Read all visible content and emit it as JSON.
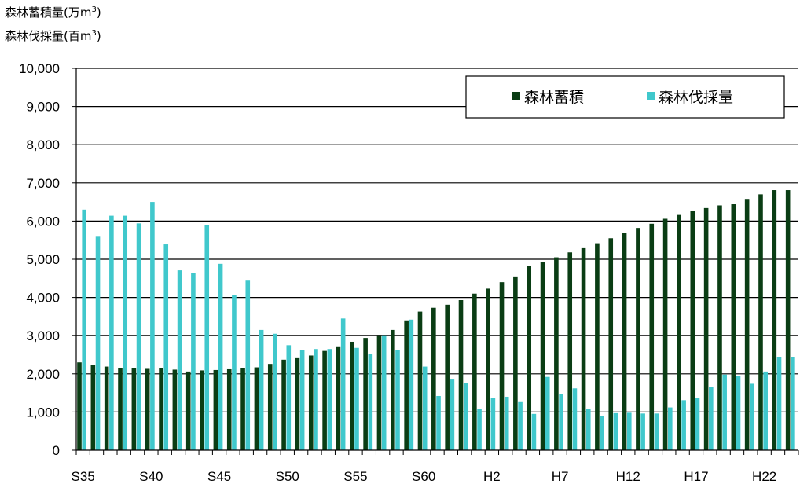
{
  "chart_data": {
    "type": "bar",
    "ylabel_lines": [
      {
        "text": "森林蓄積量(万m",
        "sup": "3",
        "close": ")"
      },
      {
        "text": "森林伐採量(百m",
        "sup": "3",
        "close": ")"
      }
    ],
    "ylim": [
      0,
      10000
    ],
    "yticks": [
      0,
      1000,
      2000,
      3000,
      4000,
      5000,
      6000,
      7000,
      8000,
      9000,
      10000
    ],
    "ytick_labels": [
      "0",
      "1,000",
      "2,000",
      "3,000",
      "4,000",
      "5,000",
      "6,000",
      "7,000",
      "8,000",
      "9,000",
      "10,000"
    ],
    "grid": true,
    "legend_position": "top-right",
    "categories": [
      "S35",
      "S36",
      "S37",
      "S38",
      "S39",
      "S40",
      "S41",
      "S42",
      "S43",
      "S44",
      "S45",
      "S46",
      "S47",
      "S48",
      "S49",
      "S50",
      "S51",
      "S52",
      "S53",
      "S54",
      "S55",
      "S56",
      "S57",
      "S58",
      "S59",
      "S60",
      "S61",
      "S62",
      "S63",
      "H1",
      "H2",
      "H3",
      "H4",
      "H5",
      "H6",
      "H7",
      "H8",
      "H9",
      "H10",
      "H11",
      "H12",
      "H13",
      "H14",
      "H15",
      "H16",
      "H17",
      "H18",
      "H19",
      "H20",
      "H21",
      "H22",
      "H23",
      "H24"
    ],
    "xtick_labels": [
      {
        "index": 0,
        "label": "S35"
      },
      {
        "index": 5,
        "label": "S40"
      },
      {
        "index": 10,
        "label": "S45"
      },
      {
        "index": 15,
        "label": "S50"
      },
      {
        "index": 20,
        "label": "S55"
      },
      {
        "index": 25,
        "label": "S60"
      },
      {
        "index": 30,
        "label": "H2"
      },
      {
        "index": 35,
        "label": "H7"
      },
      {
        "index": 40,
        "label": "H12"
      },
      {
        "index": 45,
        "label": "H17"
      },
      {
        "index": 50,
        "label": "H22"
      }
    ],
    "series": [
      {
        "name": "森林蓄積",
        "color": "#0a3d14",
        "values": [
          2300,
          2230,
          2190,
          2150,
          2150,
          2130,
          2150,
          2110,
          2060,
          2090,
          2100,
          2120,
          2150,
          2170,
          2260,
          2370,
          2410,
          2480,
          2600,
          2700,
          2840,
          2940,
          2990,
          3150,
          3400,
          3630,
          3730,
          3810,
          3930,
          4100,
          4230,
          4400,
          4550,
          4820,
          4930,
          5050,
          5180,
          5290,
          5420,
          5550,
          5690,
          5820,
          5930,
          6060,
          6160,
          6270,
          6340,
          6410,
          6440,
          6580,
          6700,
          6810,
          6810
        ]
      },
      {
        "name": "森林伐採量",
        "color": "#40c8cc",
        "values": [
          6300,
          5590,
          6140,
          6140,
          5940,
          6500,
          5390,
          4710,
          4640,
          5890,
          4880,
          4060,
          4440,
          3150,
          3050,
          2750,
          2620,
          2650,
          2650,
          3450,
          2680,
          2510,
          2990,
          2620,
          3420,
          2190,
          1420,
          1850,
          1750,
          1070,
          1360,
          1400,
          1260,
          950,
          1920,
          1470,
          1620,
          1080,
          900,
          970,
          980,
          960,
          960,
          1120,
          1310,
          1360,
          1660,
          1980,
          1940,
          1740,
          2060,
          2430,
          2430
        ]
      }
    ]
  }
}
